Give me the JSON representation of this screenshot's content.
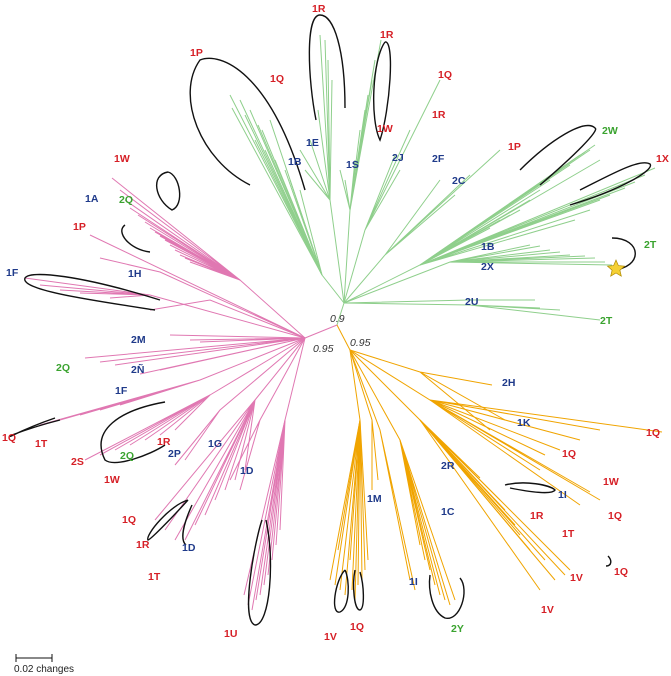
{
  "colors": {
    "green_clade": "#8fcf8c",
    "pink_clade": "#e078b2",
    "orange_clade": "#f0a400",
    "label_red": "#d61f26",
    "label_blue": "#1f3a8a",
    "label_green": "#3aa32f",
    "star": "#f5d033"
  },
  "support": {
    "green_node": "0.9",
    "pink_node": "0.95",
    "orange_node": "0.95"
  },
  "scale_bar": {
    "label": "0.02 changes"
  },
  "labels": {
    "g_1R_top": "1R",
    "g_1P": "1P",
    "g_1Q": "1Q",
    "g_1R_b": "1R",
    "g_1Q_b": "1Q",
    "g_1E": "1E",
    "g_1B": "1B",
    "g_1S": "1S",
    "g_1W": "1W",
    "g_1R_c": "1R",
    "g_2J": "2J",
    "g_2F": "2F",
    "g_1P_b": "1P",
    "g_2C": "2C",
    "g_2W": "2W",
    "g_1X": "1X",
    "g_1B_b": "1B",
    "g_2X": "2X",
    "g_2T": "2T",
    "g_2U": "2U",
    "g_2T_b": "2T",
    "p_1W": "1W",
    "p_1A": "1A",
    "p_2Q": "2Q",
    "p_1P": "1P",
    "p_1H": "1H",
    "p_1F": "1F",
    "p_2M": "2M",
    "p_2Q_b": "2Q",
    "p_2N": "2Ñ",
    "p_1F_b": "1F",
    "p_1Q": "1Q",
    "p_1T": "1T",
    "p_2S": "2S",
    "p_1R": "1R",
    "p_2Q_c": "2Q",
    "p_2P": "2P",
    "p_1G": "1G",
    "p_1W_b": "1W",
    "p_1D": "1D",
    "p_1Q_b": "1Q",
    "p_1R_b": "1R",
    "p_1D_b": "1D",
    "p_1T_b": "1T",
    "p_1U": "1U",
    "o_2H": "2H",
    "o_1K": "1K",
    "o_1Q": "1Q",
    "o_1Q_b": "1Q",
    "o_1W": "1W",
    "o_2R": "2R",
    "o_1I": "1I",
    "o_1M": "1M",
    "o_1C": "1C",
    "o_1R": "1R",
    "o_1Q_c": "1Q",
    "o_1T": "1T",
    "o_1V": "1V",
    "o_1Q_d": "1Q",
    "o_1I_b": "1I",
    "o_1V_b": "1V",
    "o_1V_c": "1V",
    "o_1Q_e": "1Q",
    "o_2Y": "2Y"
  }
}
